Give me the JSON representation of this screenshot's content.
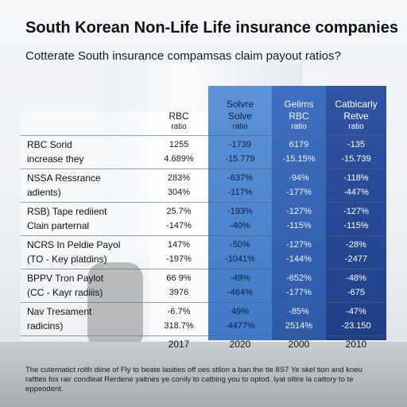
{
  "title": "South Korean Non-Life Life insurance companies",
  "subtitle": "Cotterate South insurance compamsas claim payout ratios?",
  "columns": [
    {
      "header": "",
      "sub1": "RBC",
      "sub2": "ratio"
    },
    {
      "header": "Solvre",
      "sub1": "Solve",
      "sub2": "ratio"
    },
    {
      "header": "Gelims",
      "sub1": "RBC",
      "sub2": "ratio"
    },
    {
      "header": "Catbicarly",
      "sub1": "Retve",
      "sub2": "ratio"
    }
  ],
  "rows": [
    {
      "label1": "RBC Sorid",
      "label2": "increase they",
      "v": [
        [
          "1255",
          "4.689%"
        ],
        [
          "-1739",
          "-15.779"
        ],
        [
          "6179",
          "-15.15%"
        ],
        [
          "-135",
          "-15.739"
        ]
      ]
    },
    {
      "label1": "NSSA Ressrance",
      "label2": "adients)",
      "v": [
        [
          "283%",
          "304%"
        ],
        [
          "-637%",
          "-117%"
        ],
        [
          "-94%",
          "-177%"
        ],
        [
          "-118%",
          "-447%"
        ]
      ]
    },
    {
      "label1": "RSB) Tape rediient",
      "label2": "Clain parternal",
      "v": [
        [
          "25.7%",
          "-147%"
        ],
        [
          "-193%",
          "-40%"
        ],
        [
          "-127%",
          "-115%"
        ],
        [
          "-127%",
          "-115%"
        ]
      ]
    },
    {
      "label1": "NCRS In Peldie Payol",
      "label2": "(TO - Key platdins)",
      "v": [
        [
          "147%",
          "-197%"
        ],
        [
          "-50%",
          "-1041%"
        ],
        [
          "-127%",
          "-144%"
        ],
        [
          "-28%",
          "-2477"
        ]
      ]
    },
    {
      "label1": "BPPV Tron Paylot",
      "label2": "(CC - Kayr radiiis)",
      "v": [
        [
          "66 9%",
          "3976"
        ],
        [
          "-49%",
          "-464%"
        ],
        [
          "-652%",
          "-177%"
        ],
        [
          "-48%",
          "-675"
        ]
      ]
    },
    {
      "label1": "Nav Tresament",
      "label2": "radicins)",
      "v": [
        [
          "-6.7%",
          "318.7%"
        ],
        [
          "49%",
          "-4477%"
        ],
        [
          "-85%",
          "2514%"
        ],
        [
          "-47%",
          "-23.150"
        ]
      ]
    }
  ],
  "years": [
    "2017",
    "2020",
    "2000",
    "2010"
  ],
  "footnote": "The cuternatict rolth diine of Fly to beate lasities off oes stilon a ban the tie 8S7 Ye skel tion and kneu rafttes fos rair condleat Rerdene yaitnes ye conily to catbing you to optod. lyat oltire la cattory to te eppeodent."
}
